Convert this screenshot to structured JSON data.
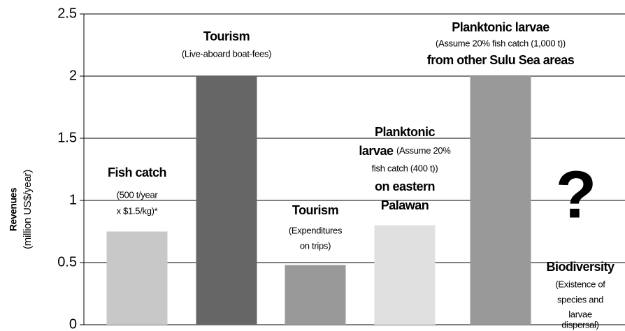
{
  "chart_data": {
    "type": "bar",
    "ylabel": [
      "Revenues",
      "(million US$/year)"
    ],
    "labels": [
      [
        "Fish catch",
        "(500 t/year",
        "x $1.5/kg)*"
      ],
      [
        "Tourism",
        "(Live-aboard boat-fees)"
      ],
      [
        "Tourism",
        "(Expenditures",
        "on trips)"
      ],
      [
        "Planktonic",
        "larvae",
        "(Assume 20%",
        "fish catch (400 t))",
        "on eastern",
        "Palawan"
      ],
      [
        "Planktonic larvae",
        "(Assume 20% fish catch (1,000 t))",
        "from other Sulu Sea areas"
      ],
      [
        "?",
        "Biodiversity",
        "(Existence of",
        "species and",
        "larvae",
        "dispersal)"
      ]
    ],
    "values": [
      0.75,
      2.0,
      0.48,
      0.8,
      2.0,
      null
    ],
    "colors": [
      "#c8c8c8",
      "#666666",
      "#999999",
      "#e0e0e0",
      "#999999",
      "#999999"
    ],
    "ylim": [
      0,
      2.5
    ],
    "yticks": [
      0,
      0.5,
      1,
      1.5,
      2,
      2.5
    ],
    "grid": true
  }
}
